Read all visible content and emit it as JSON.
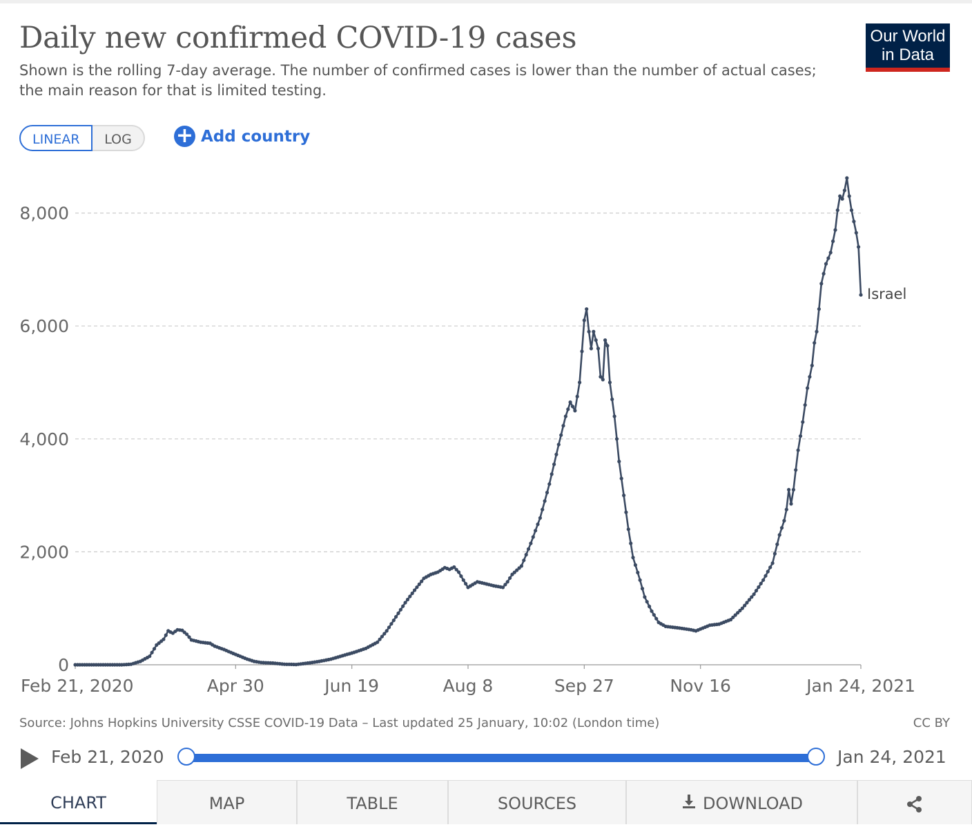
{
  "header": {
    "title": "Daily new confirmed COVID-19 cases",
    "subtitle": "Shown is the rolling 7-day average. The number of confirmed cases is lower than the number of actual cases; the main reason for that is limited testing.",
    "logo_line1": "Our World",
    "logo_line2": "in Data"
  },
  "controls": {
    "linear_label": "LINEAR",
    "log_label": "LOG",
    "add_country_label": "Add country"
  },
  "colors": {
    "line": "#3b4a62",
    "accent": "#2d6ed7",
    "logo_bg": "#002147",
    "logo_bar": "#ce261e",
    "grid": "#cccccc"
  },
  "chart_data": {
    "type": "line",
    "title": "Daily new confirmed COVID-19 cases",
    "xlabel": "",
    "ylabel": "",
    "x_start_date": "2020-02-21",
    "x_end_date": "2021-01-24",
    "x_day_span": 338,
    "ylim": [
      0,
      8600
    ],
    "y_ticks": [
      0,
      2000,
      4000,
      6000,
      8000
    ],
    "y_tick_labels": [
      "0",
      "2,000",
      "4,000",
      "6,000",
      "8,000"
    ],
    "x_ticks": [
      0,
      69,
      119,
      169,
      219,
      269,
      338
    ],
    "x_tick_labels": [
      "Feb 21, 2020",
      "Apr 30",
      "Jun 19",
      "Aug 8",
      "Sep 27",
      "Nov 16",
      "Jan 24, 2021"
    ],
    "grid": true,
    "series": [
      {
        "name": "Israel",
        "points": [
          [
            0,
            0
          ],
          [
            10,
            0
          ],
          [
            20,
            0
          ],
          [
            24,
            10
          ],
          [
            28,
            60
          ],
          [
            32,
            150
          ],
          [
            35,
            350
          ],
          [
            38,
            450
          ],
          [
            40,
            600
          ],
          [
            42,
            560
          ],
          [
            44,
            620
          ],
          [
            46,
            610
          ],
          [
            48,
            540
          ],
          [
            50,
            440
          ],
          [
            54,
            400
          ],
          [
            58,
            380
          ],
          [
            60,
            330
          ],
          [
            64,
            270
          ],
          [
            68,
            200
          ],
          [
            71,
            150
          ],
          [
            74,
            100
          ],
          [
            77,
            60
          ],
          [
            80,
            40
          ],
          [
            85,
            30
          ],
          [
            90,
            10
          ],
          [
            95,
            5
          ],
          [
            100,
            30
          ],
          [
            105,
            60
          ],
          [
            110,
            100
          ],
          [
            115,
            160
          ],
          [
            120,
            220
          ],
          [
            125,
            290
          ],
          [
            130,
            400
          ],
          [
            134,
            600
          ],
          [
            138,
            850
          ],
          [
            142,
            1100
          ],
          [
            146,
            1320
          ],
          [
            150,
            1530
          ],
          [
            153,
            1600
          ],
          [
            156,
            1640
          ],
          [
            159,
            1720
          ],
          [
            161,
            1690
          ],
          [
            163,
            1730
          ],
          [
            165,
            1640
          ],
          [
            167,
            1500
          ],
          [
            169,
            1370
          ],
          [
            171,
            1420
          ],
          [
            173,
            1470
          ],
          [
            176,
            1440
          ],
          [
            180,
            1400
          ],
          [
            184,
            1370
          ],
          [
            186,
            1470
          ],
          [
            188,
            1600
          ],
          [
            192,
            1750
          ],
          [
            196,
            2150
          ],
          [
            200,
            2600
          ],
          [
            204,
            3200
          ],
          [
            208,
            3900
          ],
          [
            211,
            4400
          ],
          [
            213,
            4650
          ],
          [
            215,
            4500
          ],
          [
            217,
            5000
          ],
          [
            219,
            6100
          ],
          [
            220,
            6300
          ],
          [
            221,
            5900
          ],
          [
            222,
            5600
          ],
          [
            223,
            5900
          ],
          [
            225,
            5600
          ],
          [
            226,
            5100
          ],
          [
            227,
            5050
          ],
          [
            228,
            5750
          ],
          [
            229,
            5650
          ],
          [
            230,
            5000
          ],
          [
            232,
            4400
          ],
          [
            234,
            3600
          ],
          [
            236,
            3000
          ],
          [
            238,
            2400
          ],
          [
            240,
            1900
          ],
          [
            243,
            1500
          ],
          [
            245,
            1200
          ],
          [
            248,
            950
          ],
          [
            251,
            750
          ],
          [
            254,
            680
          ],
          [
            260,
            650
          ],
          [
            265,
            620
          ],
          [
            267,
            600
          ],
          [
            270,
            650
          ],
          [
            273,
            700
          ],
          [
            277,
            720
          ],
          [
            282,
            800
          ],
          [
            287,
            1000
          ],
          [
            292,
            1250
          ],
          [
            296,
            1500
          ],
          [
            300,
            1800
          ],
          [
            303,
            2300
          ],
          [
            305,
            2550
          ],
          [
            306,
            2750
          ],
          [
            307,
            3100
          ],
          [
            308,
            2850
          ],
          [
            309,
            3100
          ],
          [
            311,
            3800
          ],
          [
            313,
            4300
          ],
          [
            315,
            4900
          ],
          [
            317,
            5300
          ],
          [
            318,
            5700
          ],
          [
            319,
            5900
          ],
          [
            320,
            6300
          ],
          [
            321,
            6750
          ],
          [
            323,
            7100
          ],
          [
            325,
            7300
          ],
          [
            327,
            7700
          ],
          [
            328,
            8050
          ],
          [
            329,
            8300
          ],
          [
            330,
            8250
          ],
          [
            331,
            8400
          ],
          [
            332,
            8620
          ],
          [
            333,
            8300
          ],
          [
            334,
            8050
          ],
          [
            335,
            7850
          ],
          [
            336,
            7650
          ],
          [
            337,
            7400
          ],
          [
            338,
            6550
          ]
        ],
        "end_label": "Israel"
      }
    ]
  },
  "footer": {
    "source": "Source: Johns Hopkins University CSSE COVID-19 Data – Last updated 25 January, 10:02 (London time)",
    "license": "CC BY"
  },
  "timeline": {
    "start_label": "Feb 21, 2020",
    "end_label": "Jan 24, 2021"
  },
  "tabs": [
    {
      "label": "CHART"
    },
    {
      "label": "MAP"
    },
    {
      "label": "TABLE"
    },
    {
      "label": "SOURCES"
    },
    {
      "label": "DOWNLOAD"
    }
  ]
}
